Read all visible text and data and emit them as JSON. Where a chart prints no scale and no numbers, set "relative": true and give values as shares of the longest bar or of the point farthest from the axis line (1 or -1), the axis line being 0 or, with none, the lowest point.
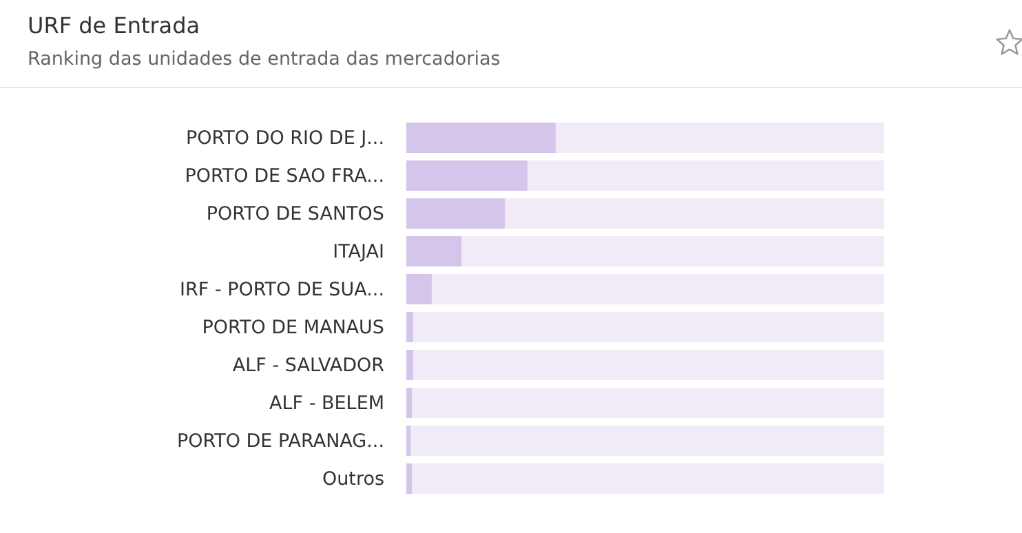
{
  "chart_data": {
    "type": "bar",
    "orientation": "horizontal",
    "relative": true,
    "title": "URF de Entrada",
    "subtitle": "Ranking das unidades de entrada das mercadorias",
    "categories": [
      "PORTO DO RIO DE J...",
      "PORTO DE SAO FRA...",
      "PORTO DE SANTOS",
      "ITAJAI",
      "IRF - PORTO DE SUA...",
      "PORTO DE MANAUS",
      "ALF - SALVADOR",
      "ALF - BELEM",
      "PORTO DE PARANAG...",
      "Outros"
    ],
    "values": [
      1,
      0.81,
      0.66,
      0.37,
      0.17,
      0.046,
      0.046,
      0.037,
      0.028,
      0.037
    ],
    "color": "#d4c5ea"
  }
}
